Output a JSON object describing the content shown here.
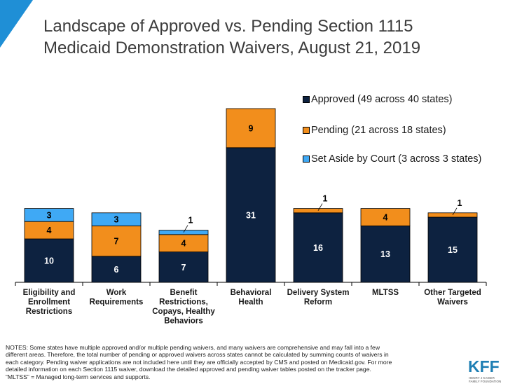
{
  "title": "Landscape of Approved vs. Pending Section 1115\nMedicaid Demonstration Waivers, August 21, 2019",
  "colors": {
    "approved": "#0d2240",
    "pending": "#f28e1c",
    "set_aside": "#3fa9f5",
    "corner": "#1f8fd6",
    "logo": "#1f7fb4"
  },
  "chart_data": {
    "type": "bar",
    "stacked": true,
    "categories": [
      [
        "Eligibility and",
        "Enrollment",
        "Restrictions"
      ],
      [
        "Work",
        "Requirements"
      ],
      [
        "Benefit",
        "Restrictions,",
        "Copays, Healthy",
        "Behaviors"
      ],
      [
        "Behavioral",
        "Health"
      ],
      [
        "Delivery System",
        "Reform"
      ],
      [
        "MLTSS"
      ],
      [
        "Other Targeted",
        "Waivers"
      ]
    ],
    "series": [
      {
        "name": "Approved (49 across 40 states)",
        "color": "#0d2240",
        "values": [
          10,
          6,
          7,
          31,
          16,
          13,
          15
        ]
      },
      {
        "name": "Pending (21 across 18 states)",
        "color": "#f28e1c",
        "values": [
          4,
          7,
          4,
          9,
          1,
          4,
          1
        ]
      },
      {
        "name": "Set Aside by Court (3 across 3 states)",
        "color": "#3fa9f5",
        "values": [
          3,
          3,
          1,
          0,
          0,
          0,
          0
        ]
      }
    ],
    "legend_position": "top-right",
    "grid": false
  },
  "notes": "NOTES: Some states have multiple approved and/or multiple pending waivers, and many waivers are comprehensive and may fall into a few\ndifferent areas. Therefore, the total number of pending or approved waivers across states cannot be calculated by summing counts of waivers in\neach category. Pending waiver applications are not included here until they are officially accepted by CMS and posted on Medicaid.gov. For more\ndetailed information on each Section 1115 waiver, download the detailed approved and pending waiver tables posted on the tracker page.\n“MLTSS” = Managed long-term services and supports.",
  "logo": {
    "text": "KFF",
    "subtitle": "HENRY J KAISER\nFAMILY FOUNDATION"
  }
}
